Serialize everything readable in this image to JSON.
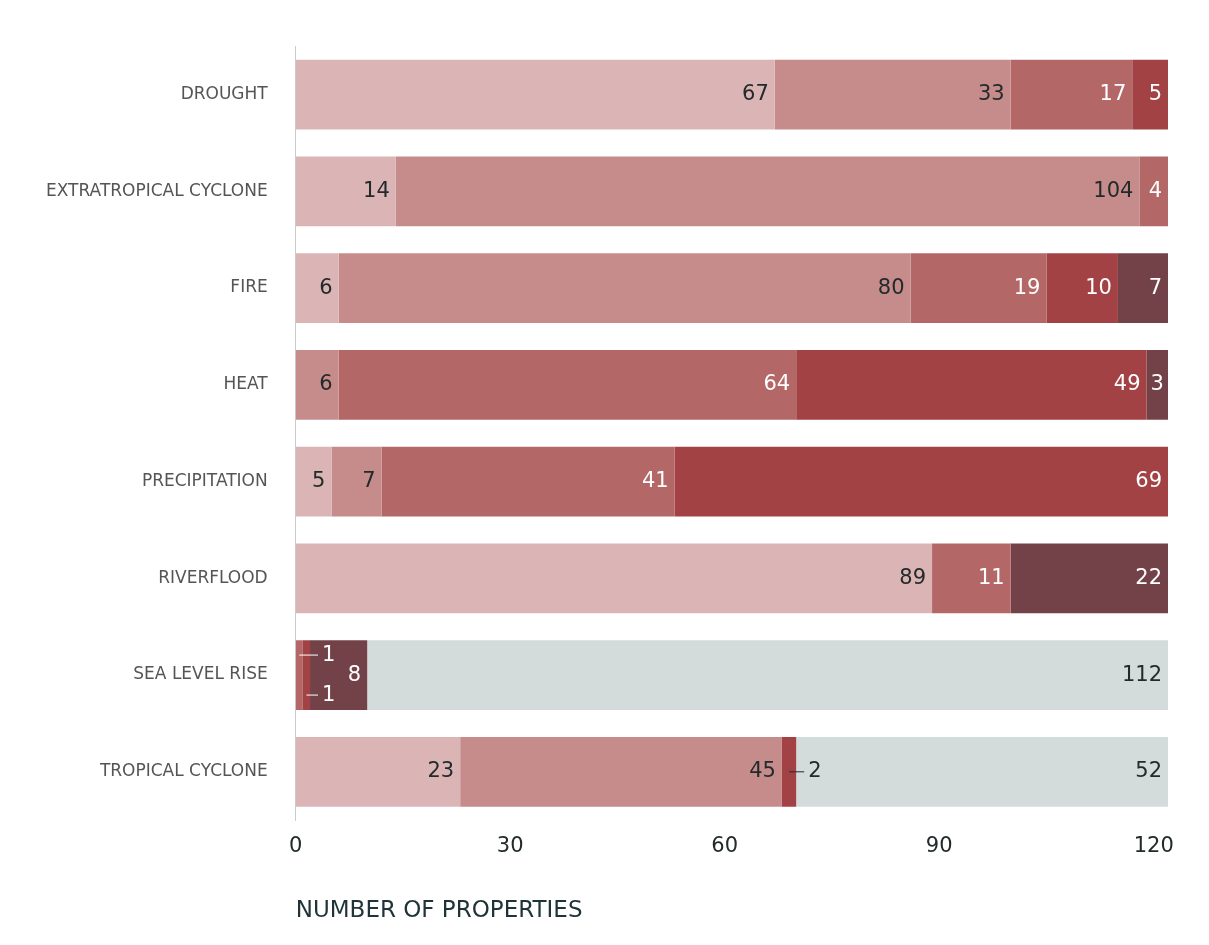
{
  "chart_data": {
    "type": "bar",
    "orientation": "horizontal",
    "stacked": true,
    "xlabel": "NUMBER OF PROPERTIES",
    "categories": [
      "DROUGHT",
      "EXTRATROPICAL CYCLONE",
      "FIRE",
      "HEAT",
      "PRECIPITATION",
      "RIVERFLOOD",
      "SEA LEVEL RISE",
      "TROPICAL CYCLONE"
    ],
    "series": [
      {
        "color": "#dbb5b5",
        "values": [
          67,
          14,
          6,
          null,
          5,
          89,
          null,
          23
        ]
      },
      {
        "color": "#c68c8b",
        "values": [
          33,
          104,
          80,
          6,
          7,
          null,
          null,
          45
        ]
      },
      {
        "color": "#b36867",
        "values": [
          17,
          4,
          19,
          64,
          41,
          11,
          1,
          null
        ]
      },
      {
        "color": "#a34244",
        "values": [
          5,
          null,
          10,
          49,
          69,
          null,
          1,
          2
        ]
      },
      {
        "color": "#734249",
        "values": [
          null,
          null,
          7,
          3,
          null,
          22,
          8,
          null
        ]
      },
      {
        "color": "#d4dcdb",
        "values": [
          null,
          null,
          null,
          null,
          null,
          null,
          112,
          52
        ]
      }
    ],
    "xlim": [
      0,
      122
    ],
    "xticks": [
      0,
      30,
      60,
      90,
      120
    ],
    "grid": false,
    "legend": false,
    "data_labels": true
  }
}
